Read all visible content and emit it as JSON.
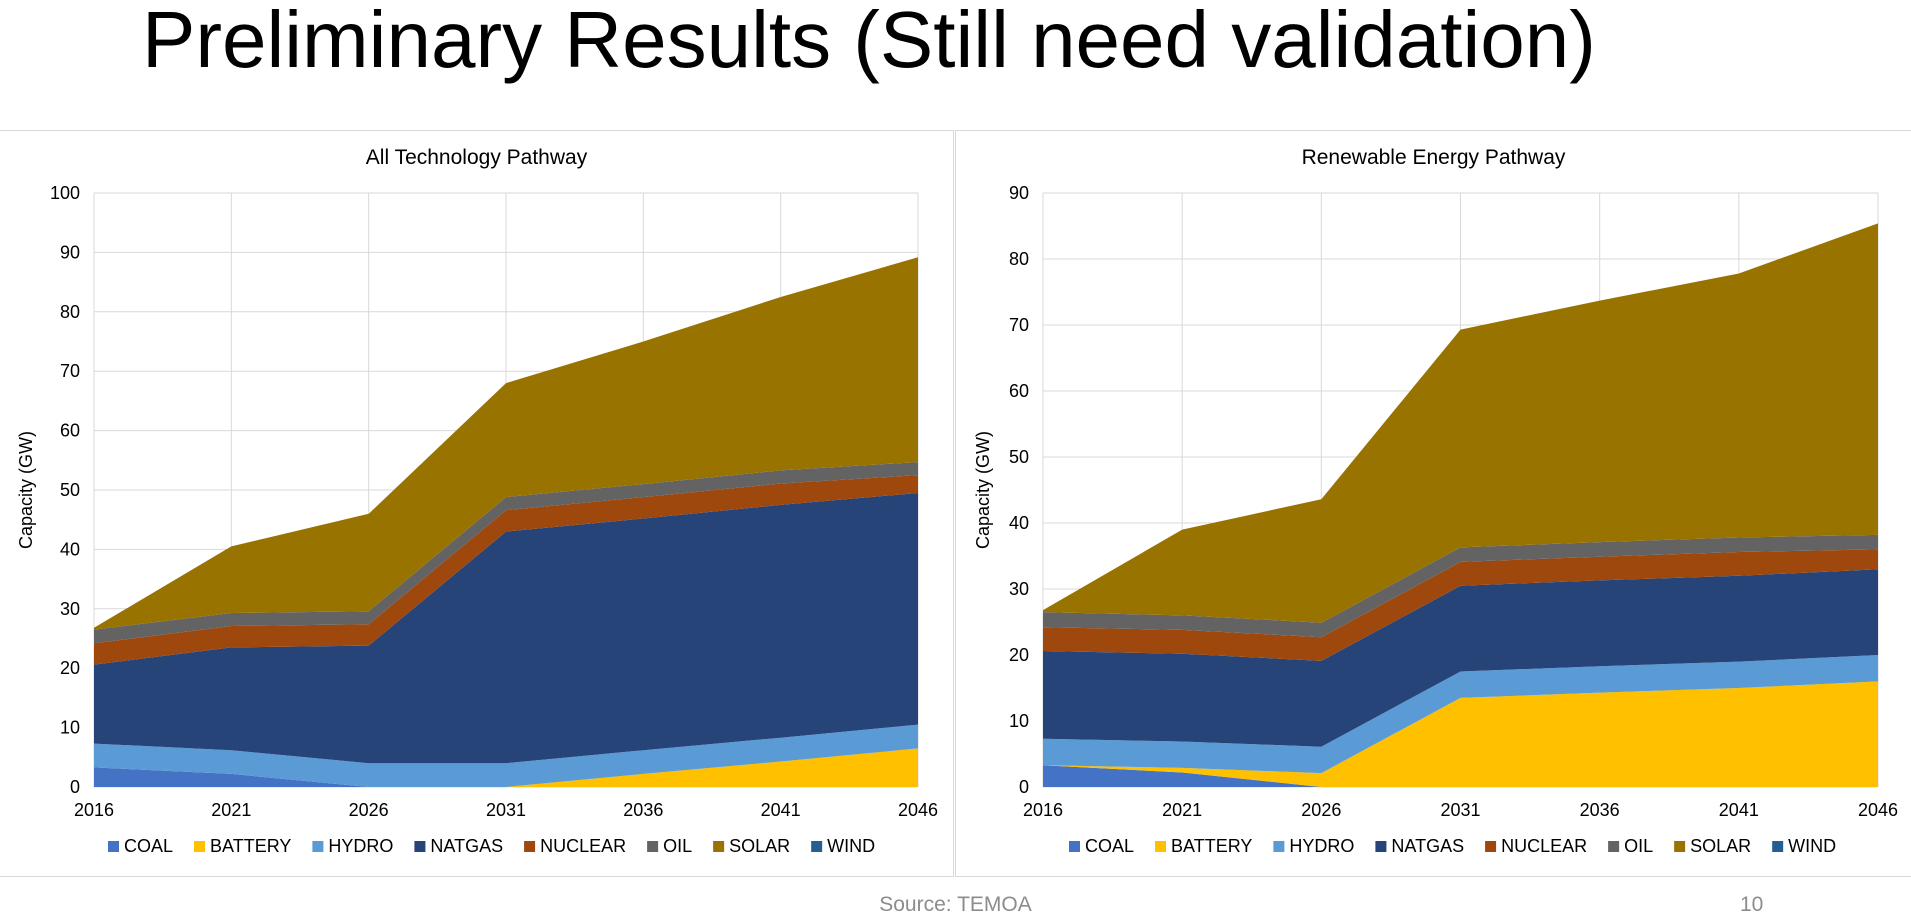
{
  "slide": {
    "title": "Preliminary Results (Still need validation)",
    "source": "Source: TEMOA",
    "page_number": "10"
  },
  "colors": {
    "COAL": "#4472C4",
    "BATTERY": "#FFC000",
    "HYDRO": "#5B9BD5",
    "NATGAS": "#264478",
    "NUCLEAR": "#9E480E",
    "OIL": "#636363",
    "SOLAR": "#997300",
    "WIND": "#255E91"
  },
  "chart_data": [
    {
      "type": "area",
      "stacked": true,
      "title": "All Technology Pathway",
      "xlabel": "",
      "ylabel": "Capacity (GW)",
      "x": [
        "2016",
        "2021",
        "2026",
        "2031",
        "2036",
        "2041",
        "2046"
      ],
      "ylim": [
        0,
        100
      ],
      "yticks": [
        0,
        10,
        20,
        30,
        40,
        50,
        60,
        70,
        80,
        90,
        100
      ],
      "grid": true,
      "legend": "bottom",
      "series": [
        {
          "name": "COAL",
          "values": [
            3.3,
            2.2,
            0,
            0,
            0,
            0,
            0
          ]
        },
        {
          "name": "BATTERY",
          "values": [
            0,
            0,
            0,
            0,
            2.2,
            4.3,
            6.5
          ]
        },
        {
          "name": "HYDRO",
          "values": [
            4.0,
            4.0,
            4.0,
            4.0,
            4.0,
            4.0,
            4.0
          ]
        },
        {
          "name": "NATGAS",
          "values": [
            13.3,
            17.3,
            19.8,
            39.0,
            39.0,
            39.2,
            39.0
          ]
        },
        {
          "name": "NUCLEAR",
          "values": [
            3.6,
            3.6,
            3.6,
            3.6,
            3.6,
            3.6,
            3.0
          ]
        },
        {
          "name": "OIL",
          "values": [
            2.3,
            2.2,
            2.2,
            2.2,
            2.2,
            2.2,
            2.2
          ]
        },
        {
          "name": "SOLAR",
          "values": [
            0.3,
            11.2,
            16.4,
            19.2,
            24.0,
            29.2,
            34.5
          ]
        },
        {
          "name": "WIND",
          "values": [
            0,
            0,
            0,
            0,
            0,
            0,
            0
          ]
        }
      ]
    },
    {
      "type": "area",
      "stacked": true,
      "title": "Renewable Energy Pathway",
      "xlabel": "",
      "ylabel": "Capacity (GW)",
      "x": [
        "2016",
        "2021",
        "2026",
        "2031",
        "2036",
        "2041",
        "2046"
      ],
      "ylim": [
        0,
        90
      ],
      "yticks": [
        0,
        10,
        20,
        30,
        40,
        50,
        60,
        70,
        80,
        90
      ],
      "grid": true,
      "legend": "bottom",
      "series": [
        {
          "name": "COAL",
          "values": [
            3.3,
            2.2,
            0,
            0,
            0,
            0,
            0
          ]
        },
        {
          "name": "BATTERY",
          "values": [
            0,
            0.7,
            2.1,
            13.5,
            14.3,
            15.0,
            16.0
          ]
        },
        {
          "name": "HYDRO",
          "values": [
            4.0,
            4.0,
            4.0,
            4.0,
            4.0,
            4.0,
            4.0
          ]
        },
        {
          "name": "NATGAS",
          "values": [
            13.3,
            13.3,
            13.0,
            13.0,
            13.0,
            13.0,
            13.0
          ]
        },
        {
          "name": "NUCLEAR",
          "values": [
            3.6,
            3.6,
            3.6,
            3.6,
            3.6,
            3.6,
            3.0
          ]
        },
        {
          "name": "OIL",
          "values": [
            2.3,
            2.2,
            2.2,
            2.2,
            2.2,
            2.2,
            2.2
          ]
        },
        {
          "name": "SOLAR",
          "values": [
            0.3,
            13.0,
            18.7,
            33.0,
            36.6,
            40.0,
            47.2
          ]
        },
        {
          "name": "WIND",
          "values": [
            0,
            0,
            0,
            0,
            0,
            0,
            0
          ]
        }
      ]
    }
  ]
}
